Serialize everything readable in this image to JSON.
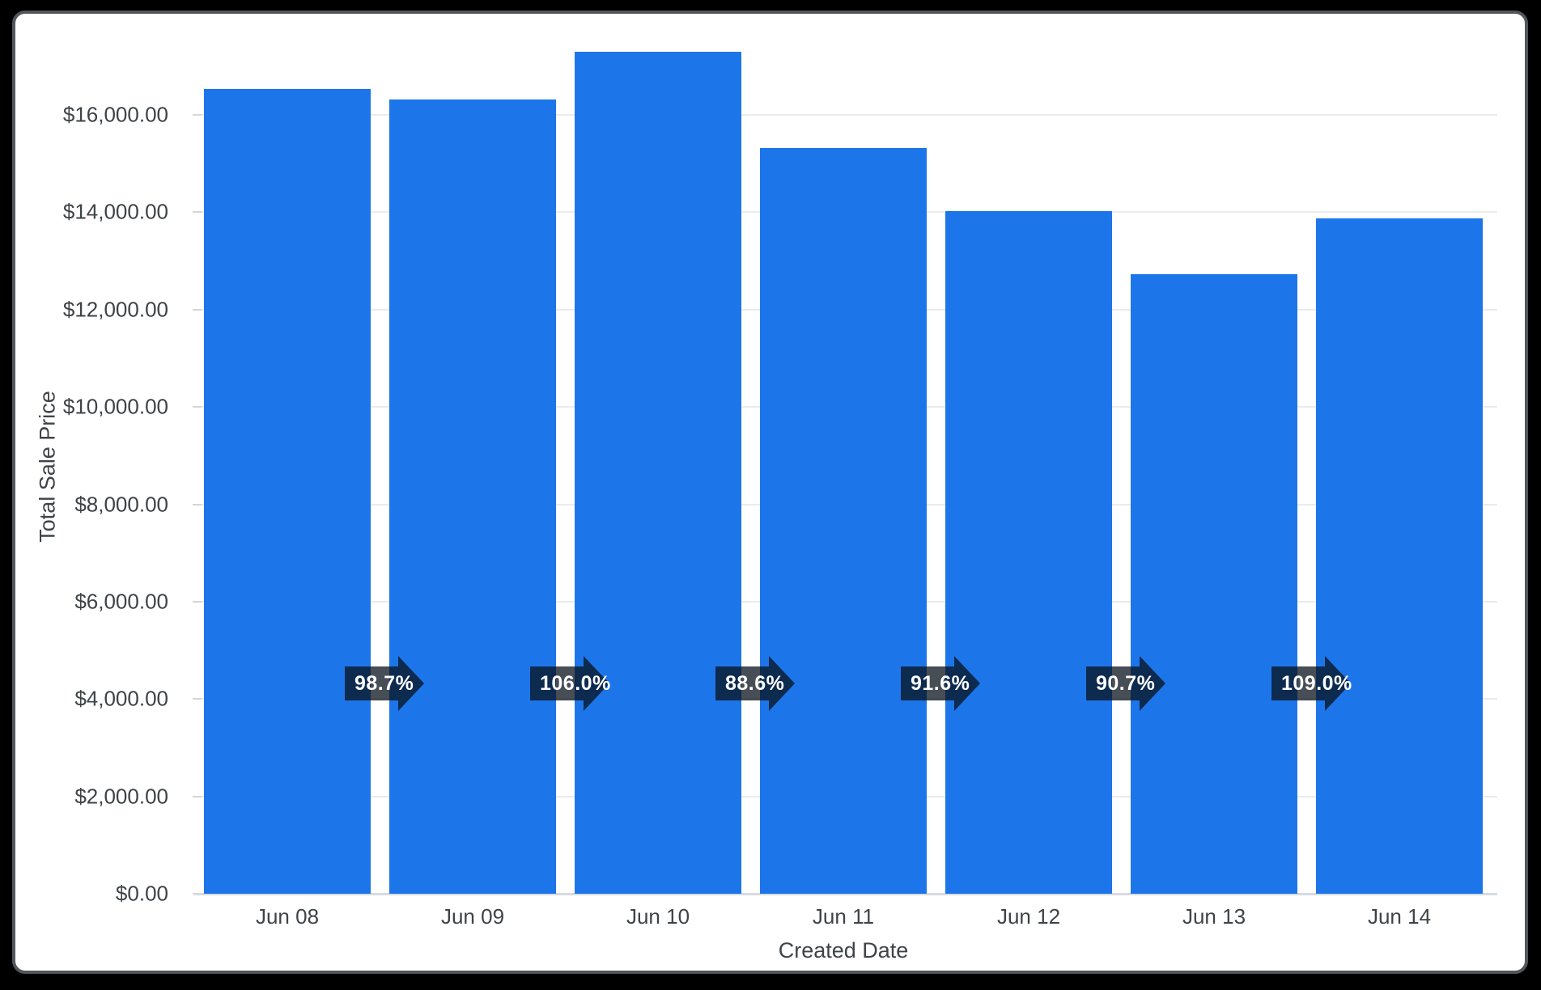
{
  "colors": {
    "bar": "#1d76e9",
    "gridline": "#e9ebee",
    "axis_line": "#d7dbe2",
    "text": "#3e4347",
    "badge_bg": "rgba(8,16,26,0.74)",
    "badge_text": "#ffffff",
    "frame_bg": "#000000",
    "frame_border": "#51575c",
    "card_bg": "#ffffff"
  },
  "chart_data": {
    "type": "bar",
    "title": "",
    "categories": [
      "Jun 08",
      "Jun 09",
      "Jun 10",
      "Jun 11",
      "Jun 12",
      "Jun 13",
      "Jun 14"
    ],
    "values": [
      16530,
      16310,
      17290,
      15320,
      14030,
      12730,
      13870
    ],
    "series_name": "Total Sale Price",
    "xlabel": "Created Date",
    "ylabel": "Total Sale Price",
    "ylim": [
      0,
      17700
    ],
    "grid": true,
    "legend": "none",
    "bar_color": "#1d76e9",
    "yticks": [
      {
        "value": 0,
        "label": "$0.00"
      },
      {
        "value": 2000,
        "label": "$2,000.00"
      },
      {
        "value": 4000,
        "label": "$4,000.00"
      },
      {
        "value": 6000,
        "label": "$6,000.00"
      },
      {
        "value": 8000,
        "label": "$8,000.00"
      },
      {
        "value": 10000,
        "label": "$10,000.00"
      },
      {
        "value": 12000,
        "label": "$12,000.00"
      },
      {
        "value": 14000,
        "label": "$14,000.00"
      },
      {
        "value": 16000,
        "label": "$16,000.00"
      }
    ],
    "annotations": {
      "type": "percent-of-previous-arrows",
      "items": [
        {
          "from": "Jun 08",
          "to": "Jun 09",
          "label": "98.7%"
        },
        {
          "from": "Jun 09",
          "to": "Jun 10",
          "label": "106.0%"
        },
        {
          "from": "Jun 10",
          "to": "Jun 11",
          "label": "88.6%"
        },
        {
          "from": "Jun 11",
          "to": "Jun 12",
          "label": "91.6%"
        },
        {
          "from": "Jun 12",
          "to": "Jun 13",
          "label": "90.7%"
        },
        {
          "from": "Jun 13",
          "to": "Jun 14",
          "label": "109.0%"
        }
      ]
    }
  }
}
